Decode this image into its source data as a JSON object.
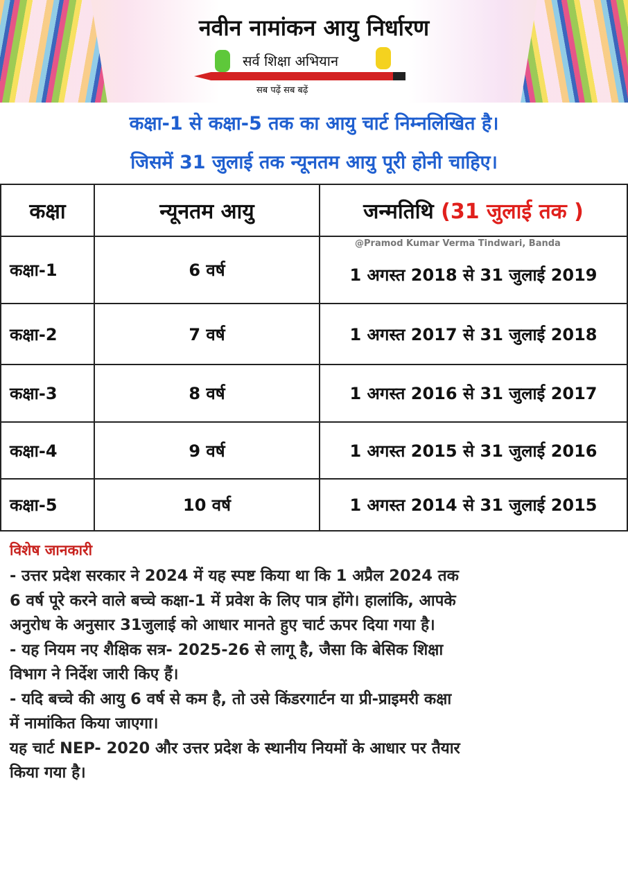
{
  "banner": {
    "title": "नवीन नामांकन आयु निर्धारण",
    "logo_text": "सर्व शिक्षा अभियान",
    "slogan": "सब पढ़ें सब बढ़ें"
  },
  "intro": {
    "line1": "कक्षा-1 से कक्षा-5 तक का आयु चार्ट निम्नलिखित है।",
    "line2": "जिसमें 31 जुलाई तक न्यूनतम आयु पूरी होनी चाहिए।"
  },
  "table": {
    "headers": {
      "class": "कक्षा",
      "min_age": "न्यूनतम आयु",
      "dob": "जन्मतिथि",
      "dob_note": "(31 जुलाई तक )"
    },
    "credit": "@Pramod Kumar Verma Tindwari, Banda",
    "rows": [
      {
        "class": "कक्षा-1",
        "age": "6 वर्ष",
        "dob": "1 अगस्त 2018 से 31 जुलाई 2019"
      },
      {
        "class": "कक्षा-2",
        "age": "7 वर्ष",
        "dob": "1 अगस्त 2017 से 31 जुलाई 2018"
      },
      {
        "class": "कक्षा-3",
        "age": "8 वर्ष",
        "dob": "1 अगस्त 2016 से 31 जुलाई 2017"
      },
      {
        "class": "कक्षा-4",
        "age": "9 वर्ष",
        "dob": "1 अगस्त 2015 से 31 जुलाई 2016"
      },
      {
        "class": "कक्षा-5",
        "age": "10 वर्ष",
        "dob": "1 अगस्त 2014 से 31 जुलाई 2015"
      }
    ]
  },
  "notes": {
    "heading": "विशेष जानकारी",
    "lines": [
      "- उत्तर प्रदेश सरकार ने 2024 में यह स्पष्ट किया था कि 1 अप्रैल 2024 तक",
      "6 वर्ष पूरे करने वाले बच्चे कक्षा-1 में प्रवेश के लिए पात्र होंगे। हालांकि, आपके",
      "अनुरोध के अनुसार 31जुलाई को आधार मानते हुए चार्ट ऊपर दिया गया है।",
      "- यह नियम नए शैक्षिक सत्र- 2025-26 से लागू है, जैसा कि बेसिक शिक्षा",
      "विभाग ने निर्देश जारी किए हैं।",
      "- यदि बच्चे की आयु 6 वर्ष से कम है, तो उसे किंडरगार्टन या प्री-प्राइमरी कक्षा",
      "में नामांकित किया जाएगा।",
      "यह चार्ट NEP- 2020 और उत्तर प्रदेश के स्थानीय नियमों के आधार पर तैयार",
      "किया गया है।"
    ]
  },
  "colors": {
    "intro": "#1f5fd0",
    "accent_red": "#e0201c"
  }
}
